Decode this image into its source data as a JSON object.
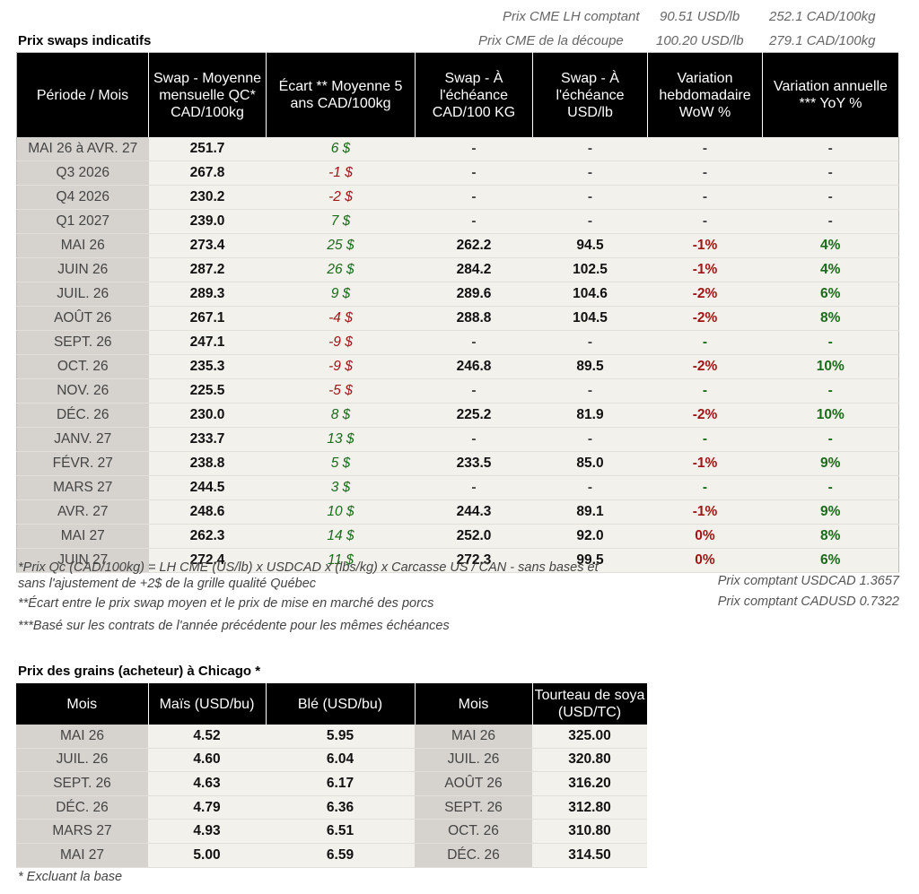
{
  "reference": {
    "lh_label": "Prix CME LH comptant",
    "lh_usd": "90.51 USD/lb",
    "lh_cad": "252.1 CAD/100kg",
    "cut_label": "Prix CME de la découpe",
    "cut_usd": "100.20 USD/lb",
    "cut_cad": "279.1 CAD/100kg"
  },
  "swaps": {
    "title": "Prix swaps indicatifs",
    "headers": [
      "Période / Mois",
      "Swap - Moyenne mensuelle QC* CAD/100kg",
      "Écart ** Moyenne 5 ans CAD/100kg",
      "Swap - À l'échéance CAD/100 KG",
      "Swap - À l'échéance USD/lb",
      "Variation hebdomadaire WoW %",
      "Variation annuelle *** YoY %"
    ],
    "rows": [
      {
        "period": "MAI 26 à  AVR. 27",
        "swap": "251.7",
        "ecart": "6 $",
        "ecart_sign": "pos",
        "cad": "-",
        "usd": "-",
        "wow": "-",
        "wow_sign": "dash",
        "yoy": "-",
        "yoy_sign": "dash"
      },
      {
        "period": "Q3 2026",
        "swap": "267.8",
        "ecart": "-1 $",
        "ecart_sign": "neg",
        "cad": "-",
        "usd": "-",
        "wow": "-",
        "wow_sign": "dash",
        "yoy": "-",
        "yoy_sign": "dash"
      },
      {
        "period": "Q4 2026",
        "swap": "230.2",
        "ecart": "-2 $",
        "ecart_sign": "neg",
        "cad": "-",
        "usd": "-",
        "wow": "-",
        "wow_sign": "dash",
        "yoy": "-",
        "yoy_sign": "dash"
      },
      {
        "period": "Q1 2027",
        "swap": "239.0",
        "ecart": "7 $",
        "ecart_sign": "pos",
        "cad": "-",
        "usd": "-",
        "wow": "-",
        "wow_sign": "dash",
        "yoy": "-",
        "yoy_sign": "dash"
      },
      {
        "period": "MAI 26",
        "swap": "273.4",
        "ecart": "25 $",
        "ecart_sign": "pos",
        "cad": "262.2",
        "usd": "94.5",
        "wow": "-1%",
        "wow_sign": "neg",
        "yoy": "4%",
        "yoy_sign": "pos"
      },
      {
        "period": "JUIN 26",
        "swap": "287.2",
        "ecart": "26 $",
        "ecart_sign": "pos",
        "cad": "284.2",
        "usd": "102.5",
        "wow": "-1%",
        "wow_sign": "neg",
        "yoy": "4%",
        "yoy_sign": "pos"
      },
      {
        "period": "JUIL. 26",
        "swap": "289.3",
        "ecart": "9 $",
        "ecart_sign": "pos",
        "cad": "289.6",
        "usd": "104.6",
        "wow": "-2%",
        "wow_sign": "neg",
        "yoy": "6%",
        "yoy_sign": "pos"
      },
      {
        "period": "AOÛT 26",
        "swap": "267.1",
        "ecart": "-4 $",
        "ecart_sign": "neg",
        "cad": "288.8",
        "usd": "104.5",
        "wow": "-2%",
        "wow_sign": "neg",
        "yoy": "8%",
        "yoy_sign": "pos"
      },
      {
        "period": "SEPT. 26",
        "swap": "247.1",
        "ecart": "-9 $",
        "ecart_sign": "neg",
        "cad": "-",
        "usd": "-",
        "wow": "-",
        "wow_sign": "pos",
        "yoy": "-",
        "yoy_sign": "pos"
      },
      {
        "period": "OCT. 26",
        "swap": "235.3",
        "ecart": "-9 $",
        "ecart_sign": "neg",
        "cad": "246.8",
        "usd": "89.5",
        "wow": "-2%",
        "wow_sign": "neg",
        "yoy": "10%",
        "yoy_sign": "pos"
      },
      {
        "period": "NOV. 26",
        "swap": "225.5",
        "ecart": "-5 $",
        "ecart_sign": "neg",
        "cad": "-",
        "usd": "-",
        "wow": "-",
        "wow_sign": "pos",
        "yoy": "-",
        "yoy_sign": "pos"
      },
      {
        "period": "DÉC. 26",
        "swap": "230.0",
        "ecart": "8 $",
        "ecart_sign": "pos",
        "cad": "225.2",
        "usd": "81.9",
        "wow": "-2%",
        "wow_sign": "neg",
        "yoy": "10%",
        "yoy_sign": "pos"
      },
      {
        "period": "JANV. 27",
        "swap": "233.7",
        "ecart": "13 $",
        "ecart_sign": "pos",
        "cad": "-",
        "usd": "-",
        "wow": "-",
        "wow_sign": "pos",
        "yoy": "-",
        "yoy_sign": "pos"
      },
      {
        "period": "FÉVR. 27",
        "swap": "238.8",
        "ecart": "5 $",
        "ecart_sign": "pos",
        "cad": "233.5",
        "usd": "85.0",
        "wow": "-1%",
        "wow_sign": "neg",
        "yoy": "9%",
        "yoy_sign": "pos"
      },
      {
        "period": "MARS 27",
        "swap": "244.5",
        "ecart": "3 $",
        "ecart_sign": "pos",
        "cad": "-",
        "usd": "-",
        "wow": "-",
        "wow_sign": "pos",
        "yoy": "-",
        "yoy_sign": "pos"
      },
      {
        "period": "AVR. 27",
        "swap": "248.6",
        "ecart": "10 $",
        "ecart_sign": "pos",
        "cad": "244.3",
        "usd": "89.1",
        "wow": "-1%",
        "wow_sign": "neg",
        "yoy": "9%",
        "yoy_sign": "pos"
      },
      {
        "period": "MAI 27",
        "swap": "262.3",
        "ecart": "14 $",
        "ecart_sign": "pos",
        "cad": "252.0",
        "usd": "92.0",
        "wow": "0%",
        "wow_sign": "neg",
        "yoy": "8%",
        "yoy_sign": "pos"
      },
      {
        "period": "JUIN 27",
        "swap": "272.4",
        "ecart": "11 $",
        "ecart_sign": "pos",
        "cad": "272.3",
        "usd": "99.5",
        "wow": "0%",
        "wow_sign": "neg",
        "yoy": "6%",
        "yoy_sign": "pos"
      }
    ]
  },
  "notes": {
    "n1a": "*Prix Qc (CAD/100kg) = LH CME (US/lb) x USDCAD x (lbs/kg) x Carcasse US / CAN - sans bases et",
    "n1b": "sans l'ajustement de +2$ de la grille qualité Québec",
    "n2": "**Écart entre le prix swap moyen et le prix de mise en marché des porcs",
    "n3": "***Basé sur les contrats de l'année précédente pour les mêmes échéances",
    "usdcad": "Prix comptant USDCAD 1.3657",
    "cadusd": "Prix comptant CADUSD 0.7322"
  },
  "grains": {
    "title": "Prix des grains (acheteur) à Chicago *",
    "headers": [
      "Mois",
      "Maïs (USD/bu)",
      "Blé (USD/bu)",
      "Mois",
      "Tourteau de soya (USD/TC)"
    ],
    "rows": [
      {
        "m1": "MAI 26",
        "mais": "4.52",
        "ble": "5.95",
        "m2": "MAI 26",
        "soya": "325.00"
      },
      {
        "m1": "JUIL. 26",
        "mais": "4.60",
        "ble": "6.04",
        "m2": "JUIL. 26",
        "soya": "320.80"
      },
      {
        "m1": "SEPT. 26",
        "mais": "4.63",
        "ble": "6.17",
        "m2": "AOÛT 26",
        "soya": "316.20"
      },
      {
        "m1": "DÉC. 26",
        "mais": "4.79",
        "ble": "6.36",
        "m2": "SEPT. 26",
        "soya": "312.80"
      },
      {
        "m1": "MARS 27",
        "mais": "4.93",
        "ble": "6.51",
        "m2": "OCT. 26",
        "soya": "310.80"
      },
      {
        "m1": "MAI 27",
        "mais": "5.00",
        "ble": "6.59",
        "m2": "DÉC. 26",
        "soya": "314.50"
      }
    ],
    "footnote": "* Excluant la base"
  }
}
